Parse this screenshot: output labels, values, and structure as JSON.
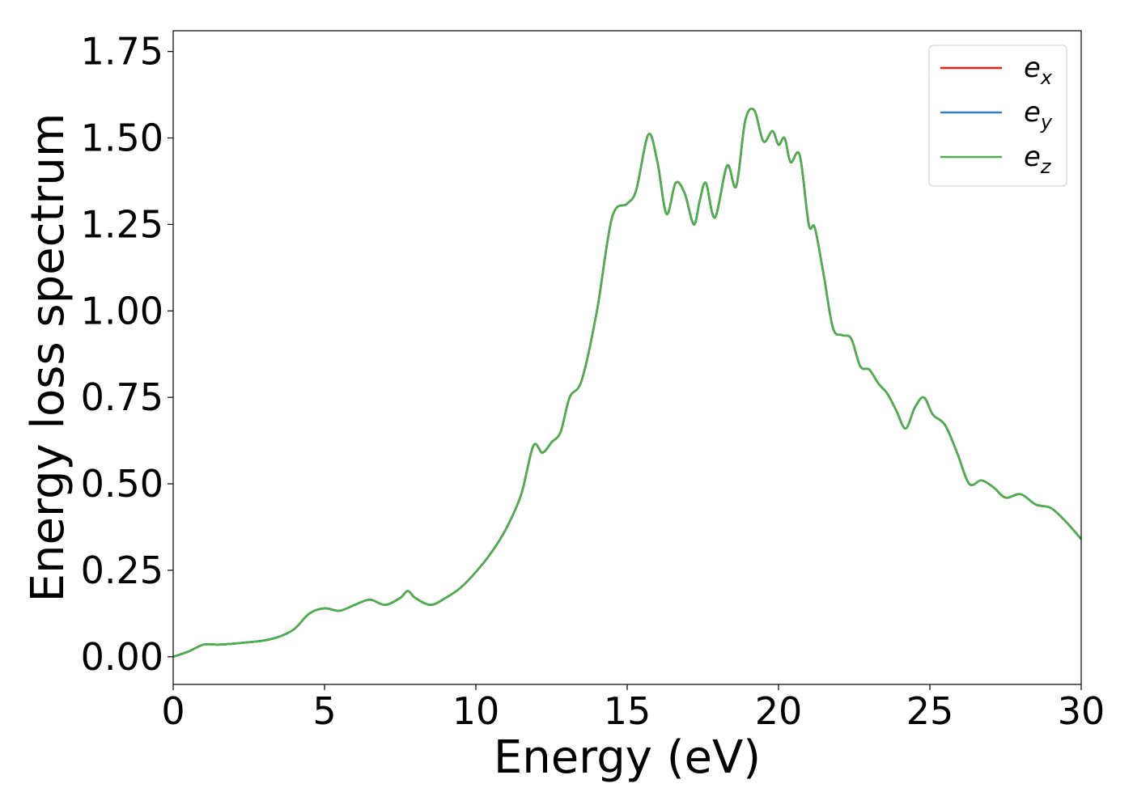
{
  "chart_data": {
    "type": "line",
    "xlabel": "Energy (eV)",
    "ylabel": "Energy loss spectrum",
    "xlim": [
      0,
      30
    ],
    "ylim": [
      -0.08,
      1.81
    ],
    "xticks": [
      0,
      5,
      10,
      15,
      20,
      25,
      30
    ],
    "xtick_labels": [
      "0",
      "5",
      "10",
      "15",
      "20",
      "25",
      "30"
    ],
    "yticks": [
      0.0,
      0.25,
      0.5,
      0.75,
      1.0,
      1.25,
      1.5,
      1.75
    ],
    "ytick_labels": [
      "0.00",
      "0.25",
      "0.50",
      "0.75",
      "1.00",
      "1.25",
      "1.50",
      "1.75"
    ],
    "grid": false,
    "legend_position": "top-right",
    "x": [
      0,
      0.5,
      1.0,
      1.5,
      2.0,
      2.5,
      3.0,
      3.5,
      4.0,
      4.5,
      5.0,
      5.5,
      6.0,
      6.5,
      7.0,
      7.5,
      7.75,
      8.0,
      8.5,
      9.0,
      9.5,
      10.0,
      10.5,
      11.0,
      11.5,
      11.9,
      12.2,
      12.5,
      12.8,
      13.1,
      13.5,
      14.0,
      14.5,
      15.0,
      15.3,
      15.7,
      16.0,
      16.3,
      16.6,
      16.9,
      17.2,
      17.4,
      17.6,
      17.9,
      18.3,
      18.6,
      18.9,
      19.2,
      19.5,
      19.8,
      20.0,
      20.2,
      20.4,
      20.7,
      21.0,
      21.2,
      21.5,
      21.8,
      22.1,
      22.4,
      22.7,
      23.0,
      23.3,
      23.6,
      23.9,
      24.2,
      24.5,
      24.8,
      25.1,
      25.5,
      25.9,
      26.3,
      26.7,
      27.1,
      27.5,
      28.0,
      28.5,
      29.0,
      29.5,
      30.0
    ],
    "series": [
      {
        "name": "e_x",
        "label_base": "e",
        "label_sub": "x",
        "color": "#e41a1c",
        "values": [
          0.0,
          0.015,
          0.035,
          0.035,
          0.038,
          0.042,
          0.047,
          0.058,
          0.08,
          0.125,
          0.14,
          0.133,
          0.15,
          0.165,
          0.15,
          0.17,
          0.19,
          0.17,
          0.15,
          0.17,
          0.2,
          0.245,
          0.3,
          0.37,
          0.47,
          0.61,
          0.59,
          0.62,
          0.65,
          0.75,
          0.8,
          1.0,
          1.27,
          1.31,
          1.35,
          1.51,
          1.43,
          1.28,
          1.37,
          1.34,
          1.25,
          1.32,
          1.37,
          1.27,
          1.42,
          1.36,
          1.55,
          1.58,
          1.49,
          1.52,
          1.48,
          1.5,
          1.43,
          1.45,
          1.25,
          1.24,
          1.1,
          0.95,
          0.93,
          0.92,
          0.84,
          0.83,
          0.79,
          0.76,
          0.71,
          0.66,
          0.72,
          0.75,
          0.7,
          0.67,
          0.59,
          0.5,
          0.51,
          0.49,
          0.46,
          0.47,
          0.44,
          0.43,
          0.39,
          0.34
        ]
      },
      {
        "name": "e_y",
        "label_base": "e",
        "label_sub": "y",
        "color": "#377eb8",
        "values": [
          0.0,
          0.015,
          0.035,
          0.035,
          0.038,
          0.042,
          0.047,
          0.058,
          0.08,
          0.125,
          0.14,
          0.133,
          0.15,
          0.165,
          0.15,
          0.17,
          0.19,
          0.17,
          0.15,
          0.17,
          0.2,
          0.245,
          0.3,
          0.37,
          0.47,
          0.61,
          0.59,
          0.62,
          0.65,
          0.75,
          0.8,
          1.0,
          1.27,
          1.31,
          1.35,
          1.51,
          1.43,
          1.28,
          1.37,
          1.34,
          1.25,
          1.32,
          1.37,
          1.27,
          1.42,
          1.36,
          1.55,
          1.58,
          1.49,
          1.52,
          1.48,
          1.5,
          1.43,
          1.45,
          1.25,
          1.24,
          1.1,
          0.95,
          0.93,
          0.92,
          0.84,
          0.83,
          0.79,
          0.76,
          0.71,
          0.66,
          0.72,
          0.75,
          0.7,
          0.67,
          0.59,
          0.5,
          0.51,
          0.49,
          0.46,
          0.47,
          0.44,
          0.43,
          0.39,
          0.34
        ]
      },
      {
        "name": "e_z",
        "label_base": "e",
        "label_sub": "z",
        "color": "#4daf4a",
        "values": [
          0.0,
          0.015,
          0.035,
          0.035,
          0.038,
          0.042,
          0.047,
          0.058,
          0.08,
          0.125,
          0.14,
          0.133,
          0.15,
          0.165,
          0.15,
          0.17,
          0.19,
          0.17,
          0.15,
          0.17,
          0.2,
          0.245,
          0.3,
          0.37,
          0.47,
          0.61,
          0.59,
          0.62,
          0.65,
          0.75,
          0.8,
          1.0,
          1.27,
          1.31,
          1.35,
          1.51,
          1.43,
          1.28,
          1.37,
          1.34,
          1.25,
          1.32,
          1.37,
          1.27,
          1.42,
          1.36,
          1.55,
          1.58,
          1.49,
          1.52,
          1.48,
          1.5,
          1.43,
          1.45,
          1.25,
          1.24,
          1.1,
          0.95,
          0.93,
          0.92,
          0.84,
          0.83,
          0.79,
          0.76,
          0.71,
          0.66,
          0.72,
          0.75,
          0.7,
          0.67,
          0.59,
          0.5,
          0.51,
          0.49,
          0.46,
          0.47,
          0.44,
          0.43,
          0.39,
          0.34
        ]
      }
    ]
  }
}
